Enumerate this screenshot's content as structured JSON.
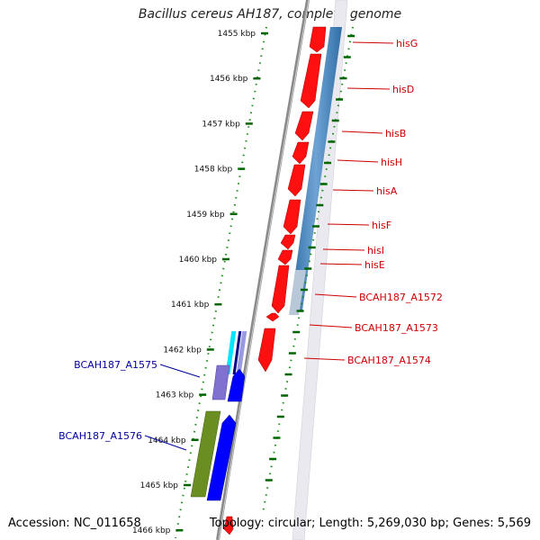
{
  "title": "Bacillus cereus AH187, complete genome",
  "accession": "Accession: NC_011658",
  "topology": "Topology: circular; Length: 5,269,030 bp; Genes: 5,569",
  "colors": {
    "backbone": "#808080",
    "forward_gene": "#ff0000",
    "reverse_gene": "#0000ff",
    "gc_band": "#4682b4",
    "ticks": "#006400",
    "forward_label": "#cc0000",
    "reverse_label": "#00009c"
  },
  "scale": {
    "unit": "kbp",
    "ticks": [
      {
        "label": "1455 kbp",
        "kbp": 1455
      },
      {
        "label": "1456 kbp",
        "kbp": 1456
      },
      {
        "label": "1457 kbp",
        "kbp": 1457
      },
      {
        "label": "1458 kbp",
        "kbp": 1458
      },
      {
        "label": "1459 kbp",
        "kbp": 1459
      },
      {
        "label": "1460 kbp",
        "kbp": 1460
      },
      {
        "label": "1461 kbp",
        "kbp": 1461
      },
      {
        "label": "1462 kbp",
        "kbp": 1462
      },
      {
        "label": "1463 kbp",
        "kbp": 1463
      },
      {
        "label": "1464 kbp",
        "kbp": 1464
      },
      {
        "label": "1465 kbp",
        "kbp": 1465
      },
      {
        "label": "1466 kbp",
        "kbp": 1466
      }
    ]
  },
  "genes": [
    {
      "label": "hisG",
      "strand": "forward"
    },
    {
      "label": "hisD",
      "strand": "forward"
    },
    {
      "label": "hisB",
      "strand": "forward"
    },
    {
      "label": "hisH",
      "strand": "forward"
    },
    {
      "label": "hisA",
      "strand": "forward"
    },
    {
      "label": "hisF",
      "strand": "forward"
    },
    {
      "label": "hisI",
      "strand": "forward"
    },
    {
      "label": "hisE",
      "strand": "forward"
    },
    {
      "label": "BCAH187_A1572",
      "strand": "forward"
    },
    {
      "label": "BCAH187_A1573",
      "strand": "forward"
    },
    {
      "label": "BCAH187_A1574",
      "strand": "forward"
    },
    {
      "label": "BCAH187_A1575",
      "strand": "reverse"
    },
    {
      "label": "BCAH187_A1576",
      "strand": "reverse"
    }
  ]
}
